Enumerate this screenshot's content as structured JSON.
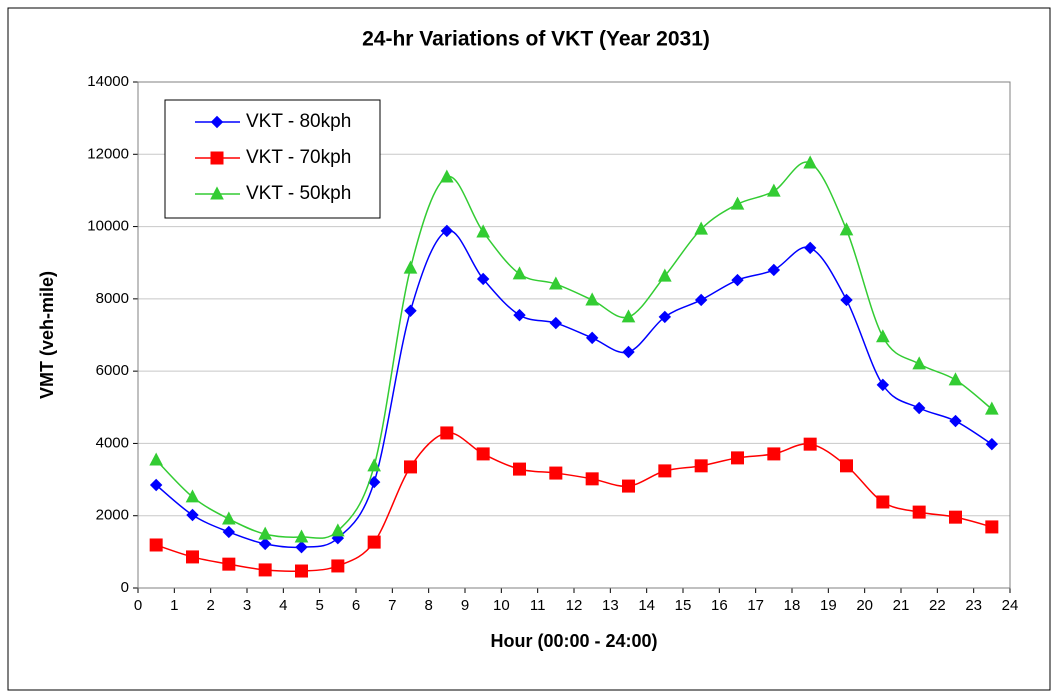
{
  "chart_data": {
    "type": "line",
    "title": "24-hr Variations of VKT (Year 2031)",
    "x_label": "Hour (00:00 - 24:00)",
    "y_label": "VMT (veh-mile)",
    "x": [
      0.5,
      1.5,
      2.5,
      3.5,
      4.5,
      5.5,
      6.5,
      7.5,
      8.5,
      9.5,
      10.5,
      11.5,
      12.5,
      13.5,
      14.5,
      15.5,
      16.5,
      17.5,
      18.5,
      19.5,
      20.5,
      21.5,
      22.5,
      23.5
    ],
    "series": [
      {
        "name": "VKT - 80kph",
        "color": "#0000ff",
        "marker": "diamond",
        "values": [
          2850,
          2020,
          1550,
          1220,
          1130,
          1380,
          2930,
          7670,
          9880,
          8550,
          7550,
          7330,
          6920,
          6530,
          7500,
          7970,
          8520,
          8800,
          9410,
          7970,
          5620,
          4980,
          4620,
          3980
        ]
      },
      {
        "name": "VKT - 70kph",
        "color": "#ff0000",
        "marker": "square",
        "values": [
          1190,
          860,
          660,
          500,
          470,
          610,
          1270,
          3350,
          4290,
          3710,
          3290,
          3180,
          3020,
          2820,
          3240,
          3380,
          3600,
          3710,
          3980,
          3380,
          2380,
          2100,
          1960,
          1690
        ]
      },
      {
        "name": "VKT - 50kph",
        "color": "#33cc33",
        "marker": "triangle",
        "values": [
          3540,
          2520,
          1910,
          1490,
          1410,
          1580,
          3380,
          8850,
          11370,
          9850,
          8690,
          8410,
          7970,
          7500,
          8630,
          9930,
          10620,
          10980,
          11760,
          9910,
          6950,
          6200,
          5760,
          4950
        ]
      }
    ],
    "xlim": [
      0,
      24
    ],
    "xticks": [
      0,
      1,
      2,
      3,
      4,
      5,
      6,
      7,
      8,
      9,
      10,
      11,
      12,
      13,
      14,
      15,
      16,
      17,
      18,
      19,
      20,
      21,
      22,
      23,
      24
    ],
    "ylim": [
      0,
      14000
    ],
    "yticks": [
      0,
      2000,
      4000,
      6000,
      8000,
      10000,
      12000,
      14000
    ],
    "grid": true,
    "legend": "top-left"
  }
}
